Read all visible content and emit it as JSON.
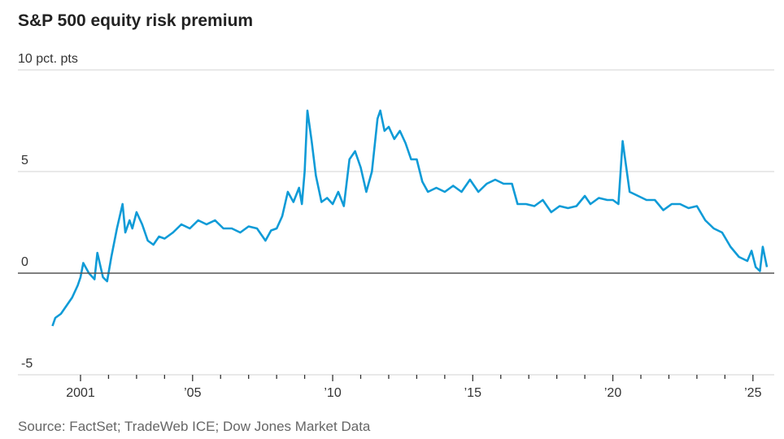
{
  "chart_data": {
    "type": "line",
    "title": "S&P 500 equity risk premium",
    "unit_label": "10 pct. pts",
    "ylabel": "pct. pts",
    "xlabel": "",
    "ylim": [
      -5,
      10
    ],
    "xlim": [
      2000.0,
      2025.7
    ],
    "yticks": [
      {
        "value": 10,
        "label": ""
      },
      {
        "value": 5,
        "label": "5"
      },
      {
        "value": 0,
        "label": "0"
      },
      {
        "value": -5,
        "label": "-5"
      }
    ],
    "xticks": [
      {
        "value": 2001,
        "label": "2001"
      },
      {
        "value": 2005,
        "label": "’05"
      },
      {
        "value": 2010,
        "label": "’10"
      },
      {
        "value": 2015,
        "label": "’15"
      },
      {
        "value": 2020,
        "label": "’20"
      },
      {
        "value": 2025,
        "label": "’25"
      }
    ],
    "grid": true,
    "series": [
      {
        "name": "S&P 500 equity risk premium",
        "color": "#0f9bd7",
        "x": [
          2000.0,
          2000.1,
          2000.3,
          2000.5,
          2000.7,
          2000.9,
          2001.0,
          2001.1,
          2001.3,
          2001.5,
          2001.6,
          2001.8,
          2001.95,
          2002.1,
          2002.3,
          2002.5,
          2002.6,
          2002.75,
          2002.85,
          2003.0,
          2003.2,
          2003.4,
          2003.6,
          2003.8,
          2004.0,
          2004.3,
          2004.6,
          2004.9,
          2005.2,
          2005.5,
          2005.8,
          2006.1,
          2006.4,
          2006.7,
          2007.0,
          2007.3,
          2007.6,
          2007.8,
          2008.0,
          2008.2,
          2008.4,
          2008.6,
          2008.8,
          2008.9,
          2009.0,
          2009.1,
          2009.25,
          2009.4,
          2009.6,
          2009.8,
          2010.0,
          2010.2,
          2010.4,
          2010.6,
          2010.8,
          2011.0,
          2011.2,
          2011.4,
          2011.6,
          2011.7,
          2011.85,
          2012.0,
          2012.2,
          2012.4,
          2012.6,
          2012.8,
          2013.0,
          2013.2,
          2013.4,
          2013.7,
          2014.0,
          2014.3,
          2014.6,
          2014.9,
          2015.2,
          2015.5,
          2015.8,
          2016.1,
          2016.4,
          2016.6,
          2016.9,
          2017.2,
          2017.5,
          2017.8,
          2018.1,
          2018.4,
          2018.7,
          2019.0,
          2019.2,
          2019.5,
          2019.8,
          2020.0,
          2020.1,
          2020.2,
          2020.35,
          2020.6,
          2020.9,
          2021.2,
          2021.5,
          2021.8,
          2022.1,
          2022.4,
          2022.7,
          2023.0,
          2023.3,
          2023.6,
          2023.9,
          2024.2,
          2024.5,
          2024.8,
          2024.95,
          2025.1,
          2025.25,
          2025.35,
          2025.5
        ],
        "values": [
          -2.6,
          -2.2,
          -2.0,
          -1.6,
          -1.2,
          -0.6,
          -0.2,
          0.5,
          0.0,
          -0.3,
          1.0,
          -0.2,
          -0.4,
          0.8,
          2.2,
          3.4,
          2.0,
          2.6,
          2.2,
          3.0,
          2.4,
          1.6,
          1.4,
          1.8,
          1.7,
          2.0,
          2.4,
          2.2,
          2.6,
          2.4,
          2.6,
          2.2,
          2.2,
          2.0,
          2.3,
          2.2,
          1.6,
          2.1,
          2.2,
          2.8,
          4.0,
          3.5,
          4.2,
          3.4,
          5.0,
          8.0,
          6.5,
          4.8,
          3.5,
          3.7,
          3.4,
          4.0,
          3.3,
          5.6,
          6.0,
          5.2,
          4.0,
          5.0,
          7.6,
          8.0,
          7.0,
          7.2,
          6.6,
          7.0,
          6.4,
          5.6,
          5.6,
          4.5,
          4.0,
          4.2,
          4.0,
          4.3,
          4.0,
          4.6,
          4.0,
          4.4,
          4.6,
          4.4,
          4.4,
          3.4,
          3.4,
          3.3,
          3.6,
          3.0,
          3.3,
          3.2,
          3.3,
          3.8,
          3.4,
          3.7,
          3.6,
          3.6,
          3.5,
          3.4,
          6.5,
          4.0,
          3.8,
          3.6,
          3.6,
          3.1,
          3.4,
          3.4,
          3.2,
          3.3,
          2.6,
          2.2,
          2.0,
          1.3,
          0.8,
          0.6,
          1.1,
          0.3,
          0.1,
          1.3,
          0.3
        ]
      }
    ]
  },
  "source": "Source: FactSet; TradeWeb ICE; Dow Jones Market Data"
}
